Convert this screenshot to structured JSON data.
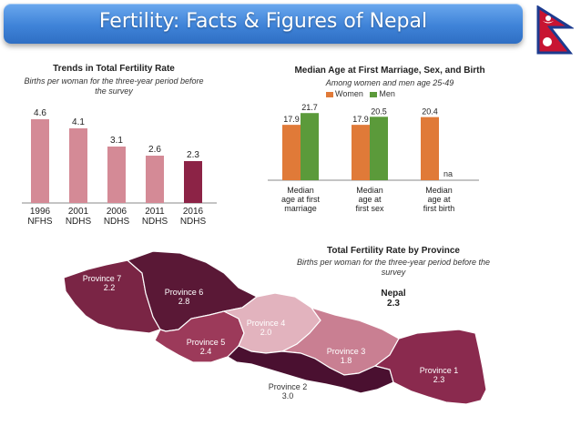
{
  "slide": {
    "title": "Fertility: Facts & Figures of Nepal"
  },
  "flag": {
    "icon": "nepal-flag-icon",
    "colors": {
      "field": "#c81432",
      "border": "#1c3b8f",
      "emblem": "#ffffff"
    }
  },
  "colors": {
    "trend_bar": "#d48a96",
    "trend_bar_last": "#8c2346",
    "women": "#e07a38",
    "men": "#5b9a3a",
    "province_1": "#8a2a4e",
    "province_2": "#4a1030",
    "province_3": "#c97f92",
    "province_4": "#e2b3be",
    "province_5": "#9c3a5a",
    "province_6": "#5a1836",
    "province_7": "#7a2545"
  },
  "chart_data": [
    {
      "type": "bar",
      "title": "Trends in Total Fertility Rate",
      "subtitle": "Births per woman for the three-year period before the survey",
      "categories": [
        [
          "1996",
          "NFHS"
        ],
        [
          "2001",
          "NDHS"
        ],
        [
          "2006",
          "NDHS"
        ],
        [
          "2011",
          "NDHS"
        ],
        [
          "2016",
          "NDHS"
        ]
      ],
      "values": [
        4.6,
        4.1,
        3.1,
        2.6,
        2.3
      ],
      "ylim": [
        0,
        5
      ]
    },
    {
      "type": "bar",
      "title": "Median Age at First Marriage, Sex, and Birth",
      "subtitle": "Among women and men age 25-49",
      "legend": [
        "Women",
        "Men"
      ],
      "legend_position": "top",
      "categories": [
        [
          "Median",
          "age at first",
          "marriage"
        ],
        [
          "Median",
          "age at",
          "first sex"
        ],
        [
          "Median",
          "age at",
          "first birth"
        ]
      ],
      "series": [
        {
          "name": "Women",
          "values": [
            17.9,
            17.9,
            20.4
          ]
        },
        {
          "name": "Men",
          "values": [
            21.7,
            20.5,
            null
          ]
        }
      ],
      "missing_label": "na",
      "ylim": [
        0,
        25
      ]
    },
    {
      "type": "map",
      "title": "Total Fertility Rate by Province",
      "subtitle": "Births per woman for the three-year period before the survey",
      "national": {
        "label": "Nepal",
        "value": "2.3"
      },
      "regions": [
        {
          "name": "Province 1",
          "value": "2.3"
        },
        {
          "name": "Province 2",
          "value": "3.0"
        },
        {
          "name": "Province 3",
          "value": "1.8"
        },
        {
          "name": "Province 4",
          "value": "2.0"
        },
        {
          "name": "Province 5",
          "value": "2.4"
        },
        {
          "name": "Province 6",
          "value": "2.8"
        },
        {
          "name": "Province 7",
          "value": "2.2"
        }
      ]
    }
  ]
}
